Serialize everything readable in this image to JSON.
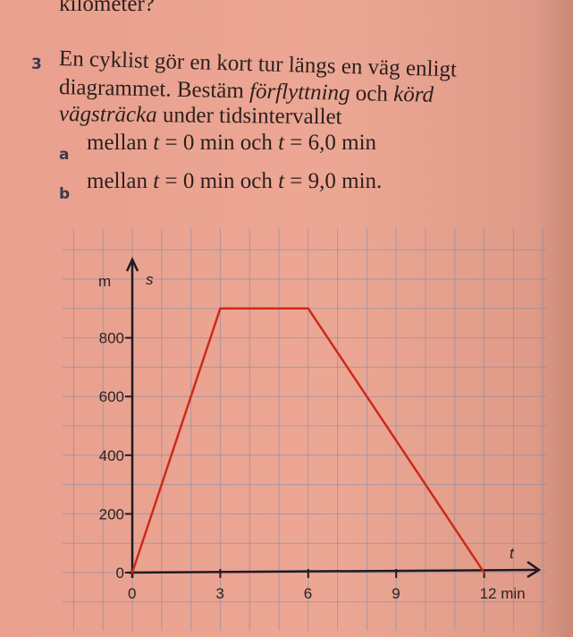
{
  "prev_line": "kilometer?",
  "problem": {
    "number": "3",
    "line1": "En cyklist gör en kort tur längs en väg enligt",
    "line2_a": "diagrammet. Bestäm ",
    "line2_em1": "förflyttning",
    "line2_b": " och ",
    "line2_em2": "körd",
    "line3_em": "vägsträcka",
    "line3_b": " under tidsintervallet",
    "parts": [
      {
        "label": "a",
        "pre": "mellan ",
        "t1": "t",
        "mid": " = 0 min och ",
        "t2": "t",
        "post": " = 6,0 min"
      },
      {
        "label": "b",
        "pre": "mellan ",
        "t1": "t",
        "mid": " = 0 min och ",
        "t2": "t",
        "post": " = 9,0 min."
      }
    ]
  },
  "chart_data": {
    "type": "line",
    "xlabel": "t",
    "xunit": "min",
    "ylabel": "s",
    "yunit": "m",
    "x_ticks": [
      "0",
      "3",
      "6",
      "9",
      "12 min"
    ],
    "y_ticks": [
      "0",
      "200",
      "400",
      "600",
      "800"
    ],
    "xlim": [
      0,
      13.5
    ],
    "ylim": [
      0,
      1050
    ],
    "grid": true,
    "series": [
      {
        "x": [
          0,
          3,
          6,
          12
        ],
        "y": [
          0,
          900,
          900,
          0
        ],
        "color": "#cc2a1a"
      }
    ]
  }
}
